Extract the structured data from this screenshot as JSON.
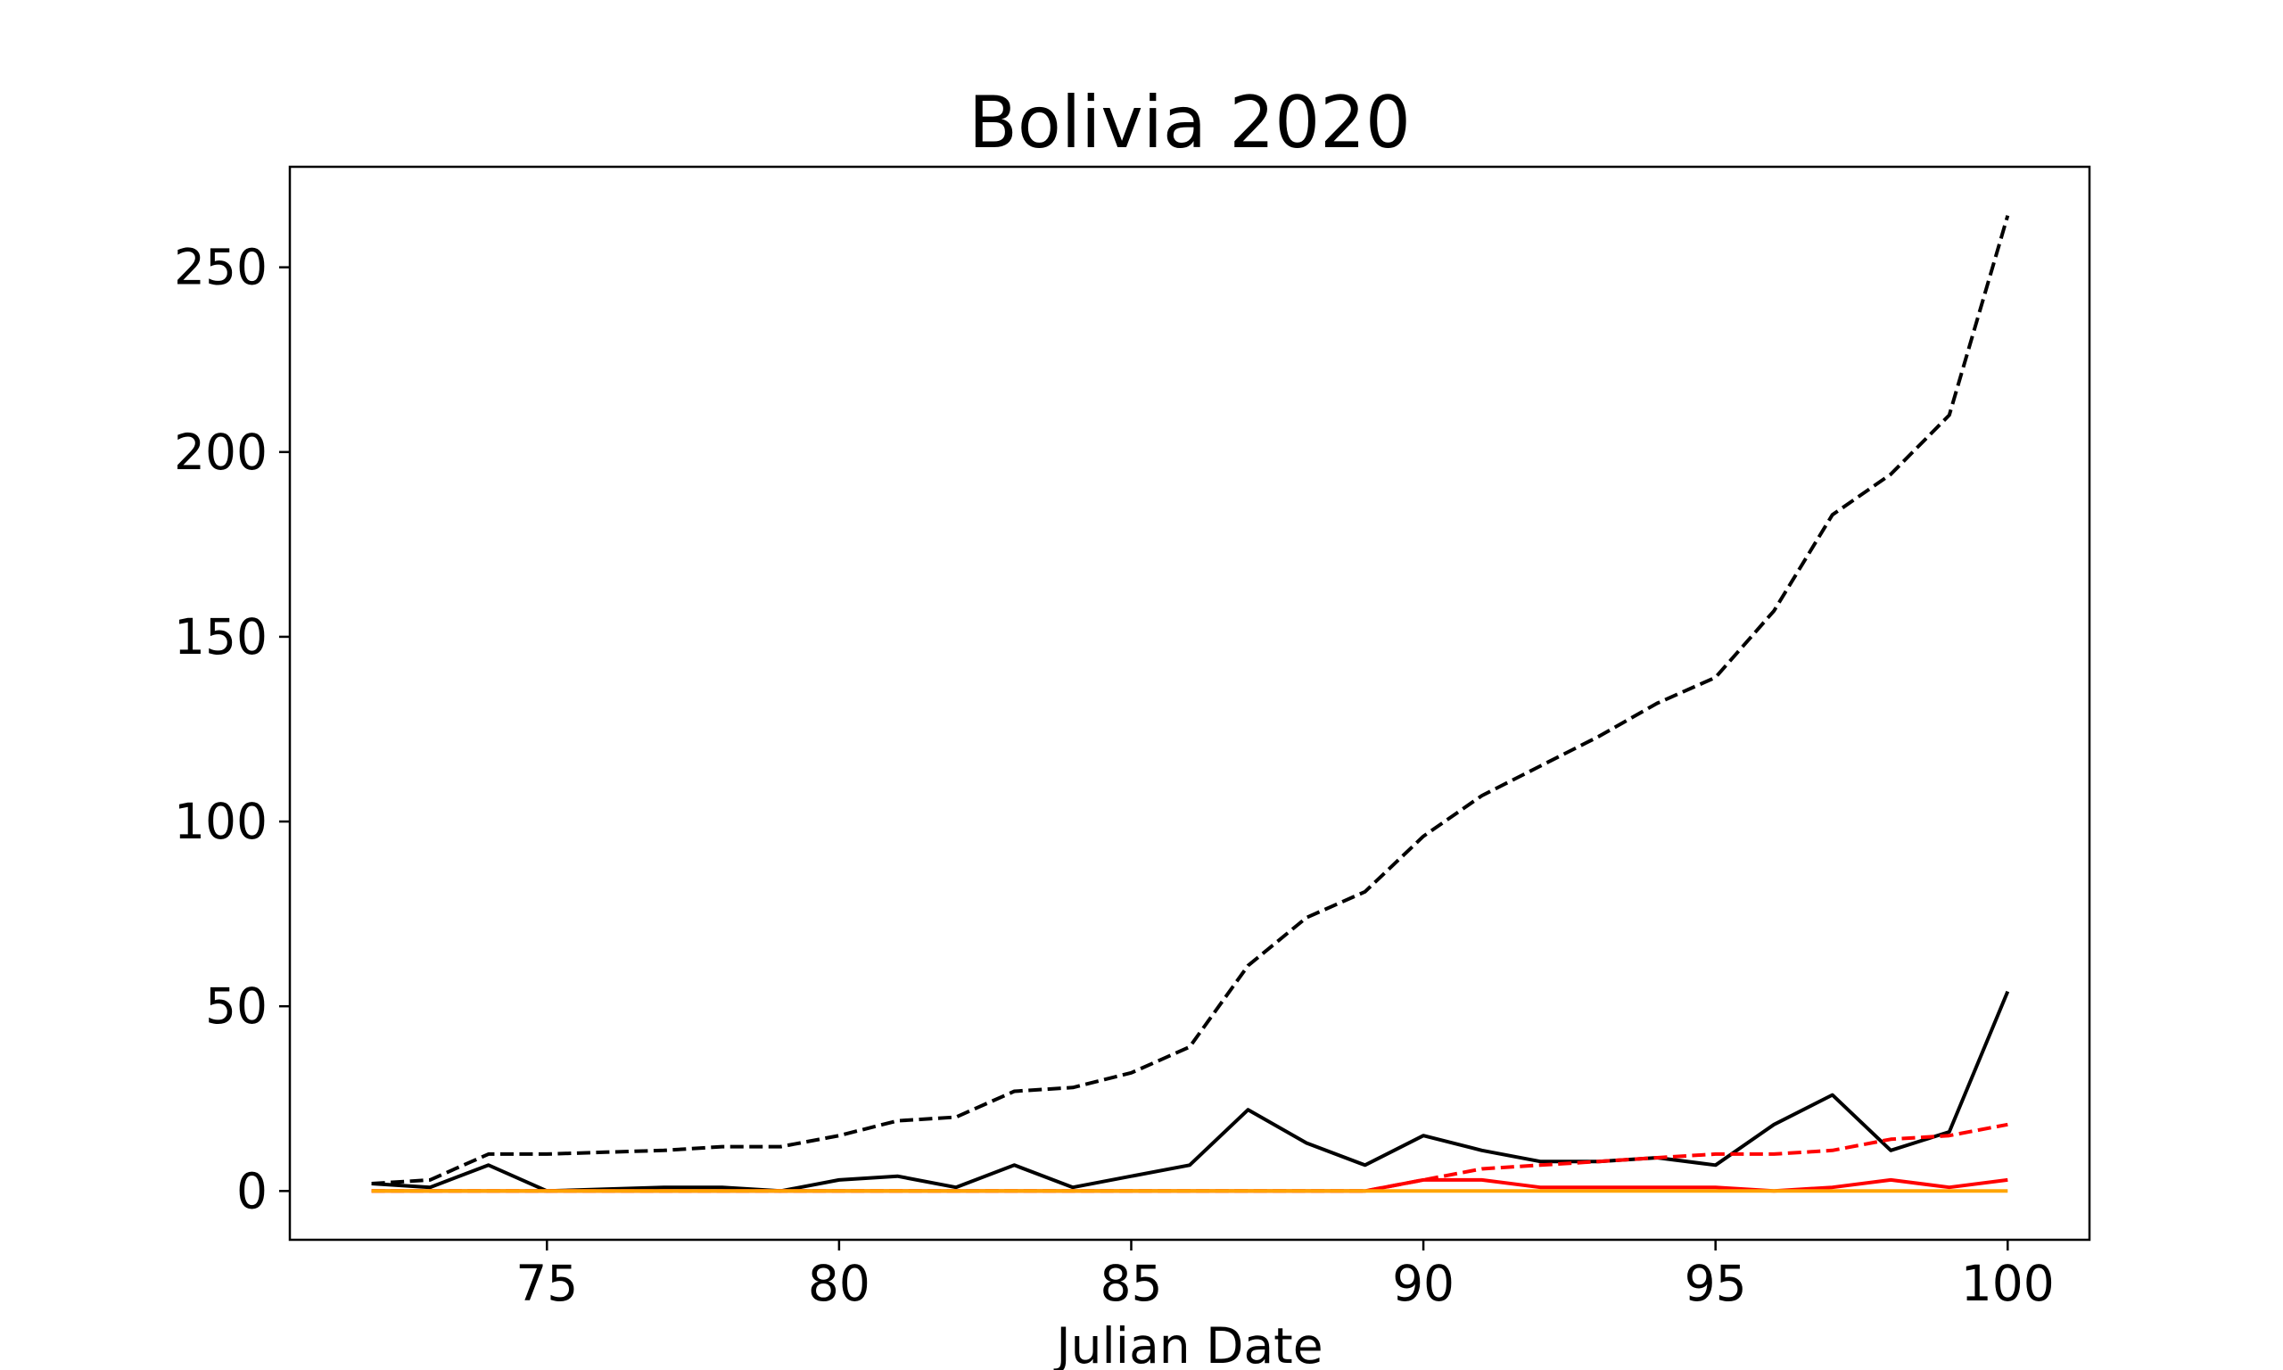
{
  "chart_data": {
    "type": "line",
    "title": "Bolivia 2020",
    "xlabel": "Julian Date",
    "ylabel": "",
    "xlim": [
      70.6,
      101.4
    ],
    "ylim": [
      -13.2,
      277.2
    ],
    "xticks": [
      75,
      80,
      85,
      90,
      95,
      100
    ],
    "yticks": [
      0,
      50,
      100,
      150,
      200,
      250
    ],
    "grid": false,
    "legend": "none",
    "x": [
      72,
      73,
      74,
      75,
      76,
      77,
      78,
      79,
      80,
      81,
      82,
      83,
      84,
      85,
      86,
      87,
      88,
      89,
      90,
      91,
      92,
      93,
      94,
      95,
      96,
      97,
      98,
      99,
      100
    ],
    "series": [
      {
        "color": "#000000",
        "style": "dashed",
        "values": [
          2,
          3,
          10,
          10,
          10.5,
          11,
          12,
          12,
          15,
          19,
          20,
          27,
          28,
          32,
          39,
          61,
          74,
          81,
          96,
          107,
          115,
          123,
          132,
          139,
          157,
          183,
          194,
          210,
          264
        ]
      },
      {
        "color": "#000000",
        "style": "solid",
        "values": [
          2,
          1,
          7,
          0,
          0.5,
          1,
          1,
          0,
          3,
          4,
          1,
          7,
          1,
          4,
          7,
          22,
          13,
          7,
          15,
          11,
          8,
          8,
          9,
          7,
          18,
          26,
          11,
          16,
          54
        ]
      },
      {
        "color": "#ff0000",
        "style": "dashed",
        "values": [
          0,
          0,
          0,
          0,
          0,
          0,
          0,
          0,
          0,
          0,
          0,
          0,
          0,
          0,
          0,
          0,
          0,
          0,
          3,
          6,
          7,
          8,
          9,
          10,
          10,
          11,
          14,
          15,
          18
        ]
      },
      {
        "color": "#ff0000",
        "style": "solid",
        "values": [
          0,
          0,
          0,
          0,
          0,
          0,
          0,
          0,
          0,
          0,
          0,
          0,
          0,
          0,
          0,
          0,
          0,
          0,
          3,
          3,
          1,
          1,
          1,
          1,
          0,
          1,
          3,
          1,
          3
        ]
      },
      {
        "color": "#ffa500",
        "style": "solid",
        "values": [
          0,
          0,
          0,
          0,
          0,
          0,
          0,
          0,
          0,
          0,
          0,
          0,
          0,
          0,
          0,
          0,
          0,
          0,
          0,
          0,
          0,
          0,
          0,
          0,
          0,
          0,
          0,
          0,
          0
        ]
      }
    ]
  }
}
